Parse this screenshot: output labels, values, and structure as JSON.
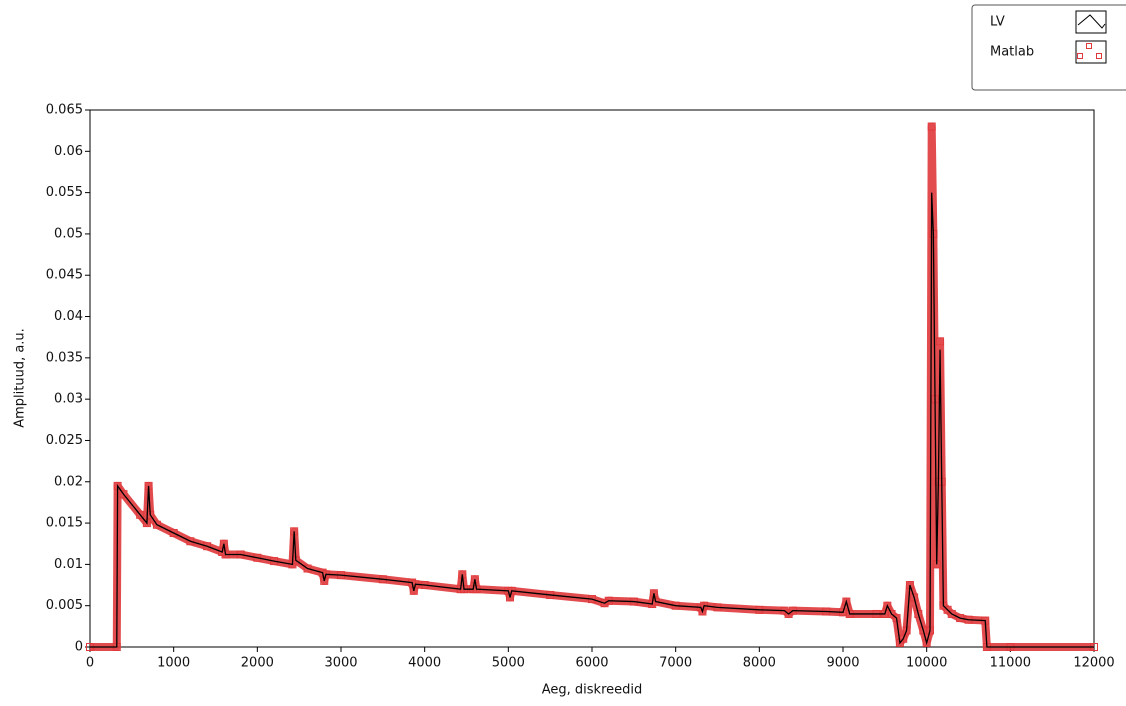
{
  "chart_data": {
    "type": "line",
    "x_label": "Aeg, diskreedid",
    "y_label": "Amplituud, a.u.",
    "x": [
      0,
      320,
      330,
      400,
      600,
      680,
      700,
      720,
      800,
      1000,
      1200,
      1400,
      1580,
      1600,
      1620,
      1800,
      2000,
      2200,
      2420,
      2440,
      2460,
      2600,
      2780,
      2800,
      2820,
      3000,
      3500,
      3850,
      3870,
      3890,
      4000,
      4430,
      4450,
      4470,
      4580,
      4600,
      4620,
      5000,
      5020,
      5040,
      5500,
      6000,
      6150,
      6200,
      6500,
      6720,
      6740,
      6760,
      7000,
      7300,
      7320,
      7340,
      7500,
      8000,
      8300,
      8350,
      8400,
      8800,
      9000,
      9040,
      9080,
      9400,
      9500,
      9530,
      9580,
      9640,
      9680,
      9720,
      9760,
      9800,
      9850,
      9900,
      9960,
      10000,
      10040,
      10060,
      10080,
      10100,
      10120,
      10140,
      10160,
      10180,
      10200,
      10250,
      10300,
      10400,
      10500,
      10700,
      10720,
      11000,
      12000
    ],
    "series": [
      {
        "name": "LV",
        "color": "#000000",
        "values": [
          0,
          0,
          0.0195,
          0.0185,
          0.016,
          0.015,
          0.0195,
          0.016,
          0.0148,
          0.0138,
          0.0128,
          0.0122,
          0.0115,
          0.0125,
          0.0112,
          0.0112,
          0.0108,
          0.0104,
          0.01,
          0.014,
          0.0105,
          0.0095,
          0.009,
          0.008,
          0.0088,
          0.0087,
          0.0082,
          0.0078,
          0.0068,
          0.0076,
          0.0075,
          0.007,
          0.0088,
          0.007,
          0.007,
          0.0082,
          0.007,
          0.0068,
          0.006,
          0.0068,
          0.0063,
          0.0058,
          0.0053,
          0.0056,
          0.0055,
          0.0052,
          0.0065,
          0.0055,
          0.005,
          0.0048,
          0.0043,
          0.005,
          0.0048,
          0.0045,
          0.0044,
          0.004,
          0.0044,
          0.0043,
          0.0042,
          0.0055,
          0.004,
          0.004,
          0.004,
          0.005,
          0.004,
          0.0035,
          0.0005,
          0.001,
          0.002,
          0.0075,
          0.006,
          0.004,
          0.002,
          0.0005,
          0.002,
          0.055,
          0.05,
          0.03,
          0.01,
          0.02,
          0.036,
          0.02,
          0.005,
          0.0045,
          0.004,
          0.0035,
          0.0033,
          0.0032,
          0,
          0,
          0
        ]
      },
      {
        "name": "Matlab",
        "color": "#e0393b",
        "values": [
          0,
          0,
          0.0195,
          0.0185,
          0.016,
          0.015,
          0.0195,
          0.016,
          0.0148,
          0.0138,
          0.0128,
          0.0122,
          0.0115,
          0.0125,
          0.0112,
          0.0112,
          0.0108,
          0.0104,
          0.01,
          0.014,
          0.0105,
          0.0095,
          0.009,
          0.008,
          0.0088,
          0.0087,
          0.0082,
          0.0078,
          0.0068,
          0.0076,
          0.0075,
          0.007,
          0.0088,
          0.007,
          0.007,
          0.0082,
          0.007,
          0.0068,
          0.006,
          0.0068,
          0.0063,
          0.0058,
          0.0053,
          0.0056,
          0.0055,
          0.0052,
          0.0065,
          0.0055,
          0.005,
          0.0048,
          0.0043,
          0.005,
          0.0048,
          0.0045,
          0.0044,
          0.004,
          0.0044,
          0.0043,
          0.0042,
          0.0055,
          0.004,
          0.004,
          0.004,
          0.005,
          0.004,
          0.0035,
          0.0005,
          0.001,
          0.002,
          0.0075,
          0.006,
          0.004,
          0.002,
          0.0005,
          0.002,
          0.063,
          0.05,
          0.03,
          0.01,
          0.02,
          0.037,
          0.02,
          0.005,
          0.0045,
          0.004,
          0.0035,
          0.0033,
          0.0032,
          0,
          0,
          0
        ]
      }
    ],
    "xlim": [
      0,
      12000
    ],
    "ylim": [
      0,
      0.065
    ],
    "xticks": [
      0,
      1000,
      2000,
      3000,
      4000,
      5000,
      6000,
      7000,
      8000,
      9000,
      10000,
      11000,
      12000
    ],
    "yticks": [
      0,
      0.005,
      0.01,
      0.015,
      0.02,
      0.025,
      0.03,
      0.035,
      0.04,
      0.045,
      0.05,
      0.055,
      0.06,
      0.065
    ],
    "legend": "top-right"
  }
}
